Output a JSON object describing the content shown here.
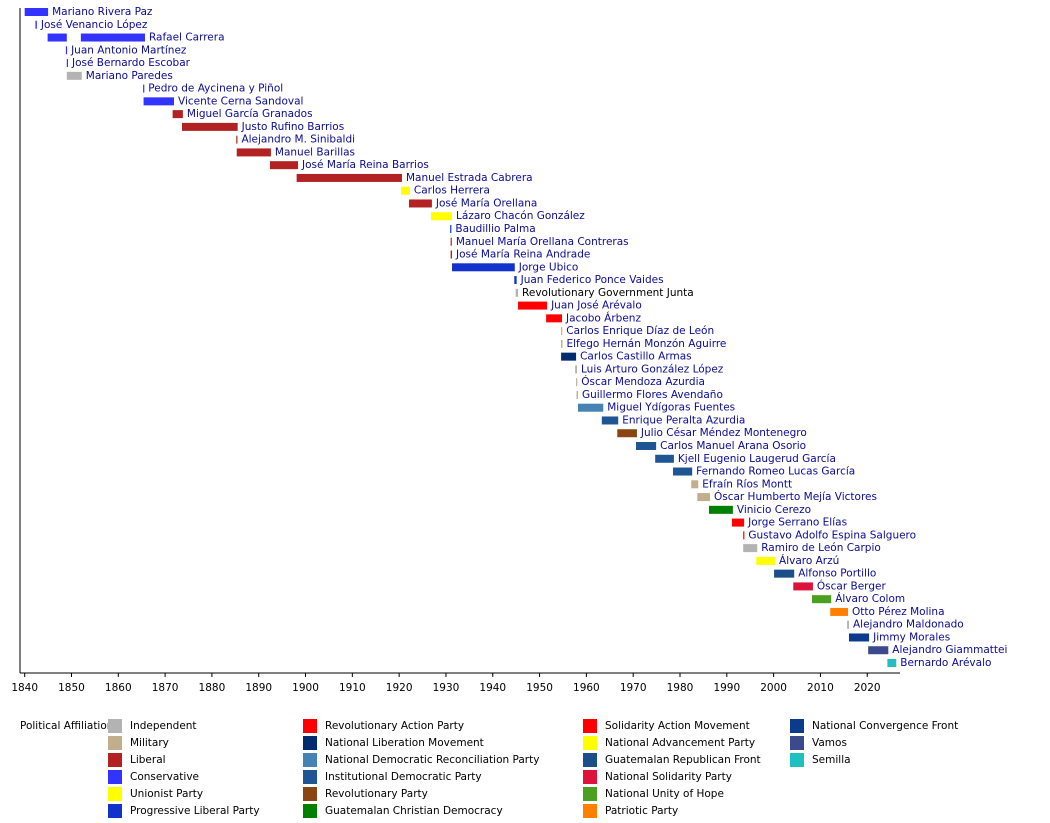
{
  "chart_data": {
    "type": "timeline",
    "xlim": [
      1839,
      2027
    ],
    "xticks": [
      1840,
      1850,
      1860,
      1870,
      1880,
      1890,
      1900,
      1910,
      1920,
      1930,
      1940,
      1950,
      1960,
      1970,
      1980,
      1990,
      2000,
      2010,
      2020
    ],
    "legend_title": "Political Affiliation:",
    "parties": [
      {
        "name": "Independent",
        "color": "#b3b3b3"
      },
      {
        "name": "Military",
        "color": "#c2ad8c"
      },
      {
        "name": "Liberal",
        "color": "#b22222"
      },
      {
        "name": "Conservative",
        "color": "#3333ff"
      },
      {
        "name": "Unionist Party",
        "color": "#ffff00"
      },
      {
        "name": "Progressive Liberal Party",
        "color": "#1133cc"
      },
      {
        "name": "Revolutionary Action Party",
        "color": "#ff0000"
      },
      {
        "name": "National Liberation Movement",
        "color": "#002b6e"
      },
      {
        "name": "National Democratic Reconciliation Party",
        "color": "#4682b4"
      },
      {
        "name": "Institutional Democratic Party",
        "color": "#1f5592"
      },
      {
        "name": "Revolutionary Party",
        "color": "#8b4513"
      },
      {
        "name": "Guatemalan Christian Democracy",
        "color": "#008000"
      },
      {
        "name": "Solidarity Action Movement",
        "color": "#ff0000"
      },
      {
        "name": "National Advancement Party",
        "color": "#ffff00"
      },
      {
        "name": "Guatemalan Republican Front",
        "color": "#1c4f8a"
      },
      {
        "name": "National Solidarity Party",
        "color": "#dc143c"
      },
      {
        "name": "National Unity of Hope",
        "color": "#4aa020"
      },
      {
        "name": "Patriotic Party",
        "color": "#ff8000"
      },
      {
        "name": "National Convergence Front",
        "color": "#0a3b8c"
      },
      {
        "name": "Vamos",
        "color": "#3a4a8c"
      },
      {
        "name": "Semilla",
        "color": "#20c0c0"
      }
    ],
    "rows": [
      {
        "name": "Mariano Rivera Paz",
        "party": "Conservative",
        "periods": [
          [
            1840,
            1845
          ]
        ]
      },
      {
        "name": "José Venancio López",
        "party": "Conservative",
        "periods": [
          [
            1842.3,
            1842.6
          ]
        ]
      },
      {
        "name": "Rafael Carrera",
        "party": "Conservative",
        "periods": [
          [
            1844.9,
            1849
          ],
          [
            1852,
            1865.7
          ]
        ]
      },
      {
        "name": "Juan Antonio Martínez",
        "party": "Conservative",
        "periods": [
          [
            1848.8,
            1849
          ]
        ]
      },
      {
        "name": "José Bernardo Escobar",
        "party": "Conservative",
        "periods": [
          [
            1849,
            1849.2
          ]
        ]
      },
      {
        "name": "Mariano Paredes",
        "party": "Independent",
        "periods": [
          [
            1849,
            1852.2
          ]
        ]
      },
      {
        "name": "Pedro de Aycinena y Piñol",
        "party": "Conservative",
        "periods": [
          [
            1865.3,
            1865.5
          ]
        ]
      },
      {
        "name": "Vicente Cerna Sandoval",
        "party": "Conservative",
        "periods": [
          [
            1865.4,
            1871.9
          ]
        ]
      },
      {
        "name": "Miguel García Granados",
        "party": "Liberal",
        "periods": [
          [
            1871.6,
            1873.8
          ]
        ]
      },
      {
        "name": "Justo Rufino Barrios",
        "party": "Liberal",
        "periods": [
          [
            1873.6,
            1885.5
          ]
        ]
      },
      {
        "name": "Alejandro M. Sinibaldi",
        "party": "Liberal",
        "periods": [
          [
            1885.2,
            1885.4
          ]
        ]
      },
      {
        "name": "Manuel Barillas",
        "party": "Liberal",
        "periods": [
          [
            1885.3,
            1892.6
          ]
        ]
      },
      {
        "name": "José María Reina Barrios",
        "party": "Liberal",
        "periods": [
          [
            1892.4,
            1898.4
          ]
        ]
      },
      {
        "name": "Manuel Estrada Cabrera",
        "party": "Liberal",
        "periods": [
          [
            1898.1,
            1920.6
          ]
        ]
      },
      {
        "name": "Carlos Herrera",
        "party": "Unionist Party",
        "periods": [
          [
            1920.4,
            1922.3
          ]
        ]
      },
      {
        "name": "José María Orellana",
        "party": "Liberal",
        "periods": [
          [
            1922.1,
            1927
          ]
        ]
      },
      {
        "name": "Lázaro Chacón González",
        "party": "Unionist Party",
        "periods": [
          [
            1926.8,
            1931.3
          ]
        ]
      },
      {
        "name": "Baudillio Palma",
        "party": "Progressive Liberal Party",
        "periods": [
          [
            1930.9,
            1931.1
          ]
        ]
      },
      {
        "name": "Manuel María Orellana Contreras",
        "party": "Liberal",
        "periods": [
          [
            1931.0,
            1931.2
          ]
        ]
      },
      {
        "name": "José María Reina Andrade",
        "party": "Liberal",
        "periods": [
          [
            1931.0,
            1931.3
          ]
        ]
      },
      {
        "name": "Jorge Ubico",
        "party": "Progressive Liberal Party",
        "periods": [
          [
            1931.3,
            1944.7
          ]
        ]
      },
      {
        "name": "Juan Federico Ponce Vaides",
        "party": "Progressive Liberal Party",
        "periods": [
          [
            1944.6,
            1945.1
          ]
        ]
      },
      {
        "name": "Revolutionary Government Junta",
        "party": "Independent",
        "label_color": "#444444",
        "periods": [
          [
            1944.9,
            1945.4
          ]
        ]
      },
      {
        "name": "Juan José Arévalo",
        "party": "Revolutionary Action Party",
        "periods": [
          [
            1945.4,
            1951.6
          ]
        ]
      },
      {
        "name": "Jacobo Árbenz",
        "party": "Revolutionary Action Party",
        "periods": [
          [
            1951.4,
            1954.8
          ]
        ]
      },
      {
        "name": "Carlos Enrique Díaz de León",
        "party": "Military",
        "periods": [
          [
            1954.6,
            1954.8
          ]
        ]
      },
      {
        "name": "Elfego Hernán Monzón Aguirre",
        "party": "Military",
        "periods": [
          [
            1954.6,
            1954.9
          ]
        ]
      },
      {
        "name": "Carlos Castillo Armas",
        "party": "National Liberation Movement",
        "periods": [
          [
            1954.6,
            1957.8
          ]
        ]
      },
      {
        "name": "Luis Arturo González López",
        "party": "Independent",
        "periods": [
          [
            1957.6,
            1958.0
          ]
        ]
      },
      {
        "name": "Óscar Mendoza Azurdia",
        "party": "Military",
        "periods": [
          [
            1957.8,
            1958.0
          ]
        ]
      },
      {
        "name": "Guillermo Flores Avendaño",
        "party": "Military",
        "periods": [
          [
            1957.9,
            1958.2
          ]
        ]
      },
      {
        "name": "Miguel Ydígoras Fuentes",
        "party": "National Democratic Reconciliation Party",
        "periods": [
          [
            1958.2,
            1963.6
          ]
        ]
      },
      {
        "name": "Enrique Peralta Azurdia",
        "party": "Institutional Democratic Party",
        "periods": [
          [
            1963.3,
            1966.8
          ]
        ]
      },
      {
        "name": "Julio César Méndez Montenegro",
        "party": "Revolutionary Party",
        "periods": [
          [
            1966.6,
            1970.8
          ]
        ]
      },
      {
        "name": "Carlos Manuel Arana Osorio",
        "party": "Institutional Democratic Party",
        "periods": [
          [
            1970.6,
            1974.9
          ]
        ]
      },
      {
        "name": "Kjell Eugenio Laugerud García",
        "party": "Institutional Democratic Party",
        "periods": [
          [
            1974.7,
            1978.7
          ]
        ]
      },
      {
        "name": "Fernando Romeo Lucas García",
        "party": "Institutional Democratic Party",
        "periods": [
          [
            1978.5,
            1982.6
          ]
        ]
      },
      {
        "name": "Efraín Ríos Montt",
        "party": "Military",
        "periods": [
          [
            1982.4,
            1983.9
          ]
        ]
      },
      {
        "name": "Óscar Humberto Mejía Victores",
        "party": "Military",
        "periods": [
          [
            1983.7,
            1986.4
          ]
        ]
      },
      {
        "name": "Vinicio Cerezo",
        "party": "Guatemalan Christian Democracy",
        "periods": [
          [
            1986.2,
            1991.3
          ]
        ]
      },
      {
        "name": "Jorge Serrano Elías",
        "party": "Solidarity Action Movement",
        "periods": [
          [
            1991.1,
            1993.7
          ]
        ]
      },
      {
        "name": "Gustavo Adolfo Espina Salguero",
        "party": "Solidarity Action Movement",
        "periods": [
          [
            1993.5,
            1993.7
          ]
        ]
      },
      {
        "name": "Ramiro de León Carpio",
        "party": "Independent",
        "periods": [
          [
            1993.5,
            1996.5
          ]
        ]
      },
      {
        "name": "Álvaro Arzú",
        "party": "National Advancement Party",
        "periods": [
          [
            1996.3,
            2000.3
          ]
        ]
      },
      {
        "name": "Alfonso Portillo",
        "party": "Guatemalan Republican Front",
        "periods": [
          [
            2000.1,
            2004.4
          ]
        ]
      },
      {
        "name": "Óscar Berger",
        "party": "National Solidarity Party",
        "periods": [
          [
            2004.2,
            2008.4
          ]
        ]
      },
      {
        "name": "Álvaro Colom",
        "party": "National Unity of Hope",
        "periods": [
          [
            2008.2,
            2012.3
          ]
        ]
      },
      {
        "name": "Otto Pérez Molina",
        "party": "Patriotic Party",
        "periods": [
          [
            2012.1,
            2015.9
          ]
        ]
      },
      {
        "name": "Alejandro Maldonado",
        "party": "Independent",
        "periods": [
          [
            2015.7,
            2016.1
          ]
        ]
      },
      {
        "name": "Jimmy Morales",
        "party": "National Convergence Front",
        "periods": [
          [
            2016.1,
            2020.4
          ]
        ]
      },
      {
        "name": "Alejandro Giammattei",
        "party": "Vamos",
        "periods": [
          [
            2020.2,
            2024.5
          ]
        ]
      },
      {
        "name": "Bernardo Arévalo",
        "party": "Semilla",
        "periods": [
          [
            2024.3,
            2026.2
          ]
        ]
      }
    ]
  }
}
